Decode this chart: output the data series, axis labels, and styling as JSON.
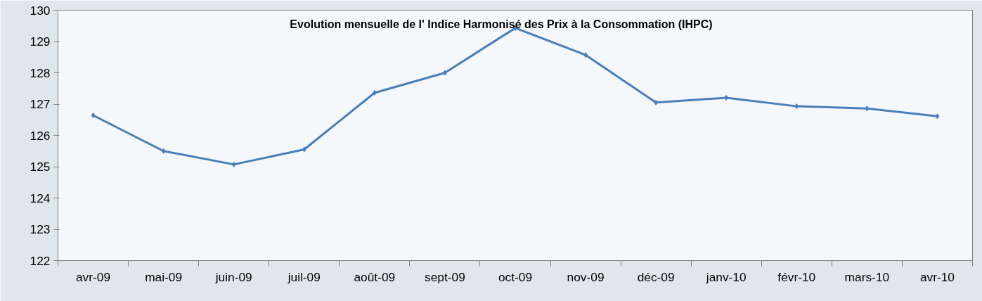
{
  "chart_data": {
    "type": "line",
    "title": "Evolution mensuelle de l' Indice Harmonisé des Prix à la Consommation (IHPC)",
    "categories": [
      "avr-09",
      "mai-09",
      "juin-09",
      "juil-09",
      "août-09",
      "sept-09",
      "oct-09",
      "nov-09",
      "déc-09",
      "janv-10",
      "févr-10",
      "mars-10",
      "avr-10"
    ],
    "series": [
      {
        "color": "#4a7ebb",
        "values": [
          126.64,
          125.5,
          125.07,
          125.55,
          127.36,
          128.0,
          129.43,
          128.57,
          127.05,
          127.2,
          126.93,
          126.86,
          126.61
        ]
      }
    ],
    "ylim": [
      122,
      130
    ],
    "yticks": [
      122,
      123,
      124,
      125,
      126,
      127,
      128,
      129,
      130
    ],
    "grid": false,
    "marker": "diamond",
    "line_style": "solid"
  }
}
